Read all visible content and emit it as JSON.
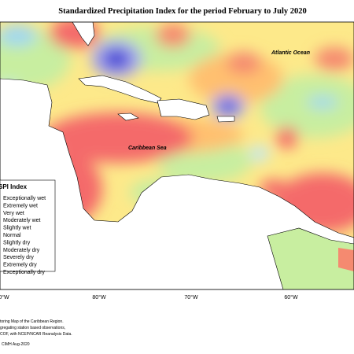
{
  "title": "Standardized Precipitation Index for the period February to July 2020",
  "labels": {
    "ocean": "Atlantic Ocean",
    "sea": "Caribbean Sea"
  },
  "legend": {
    "title": "SPI Index",
    "items": [
      "Exceptionally wet",
      "Extremely wet",
      "Very wet",
      "Moderately wet",
      "Slightly wet",
      "Normal",
      "Slightly dry",
      "Moderately dry",
      "Severely dry",
      "Extremely dry",
      "Exceptionally dry"
    ]
  },
  "axis_labels": [
    "0°W",
    "80°W",
    "70°W",
    "60°W"
  ],
  "footnote": [
    "toring Map of the Caribbean Region.",
    "gregating station based observations,",
    "COF, with NCEP/NCAR Reanalysis Data."
  ],
  "credit": "CIMH Aug-2020"
}
